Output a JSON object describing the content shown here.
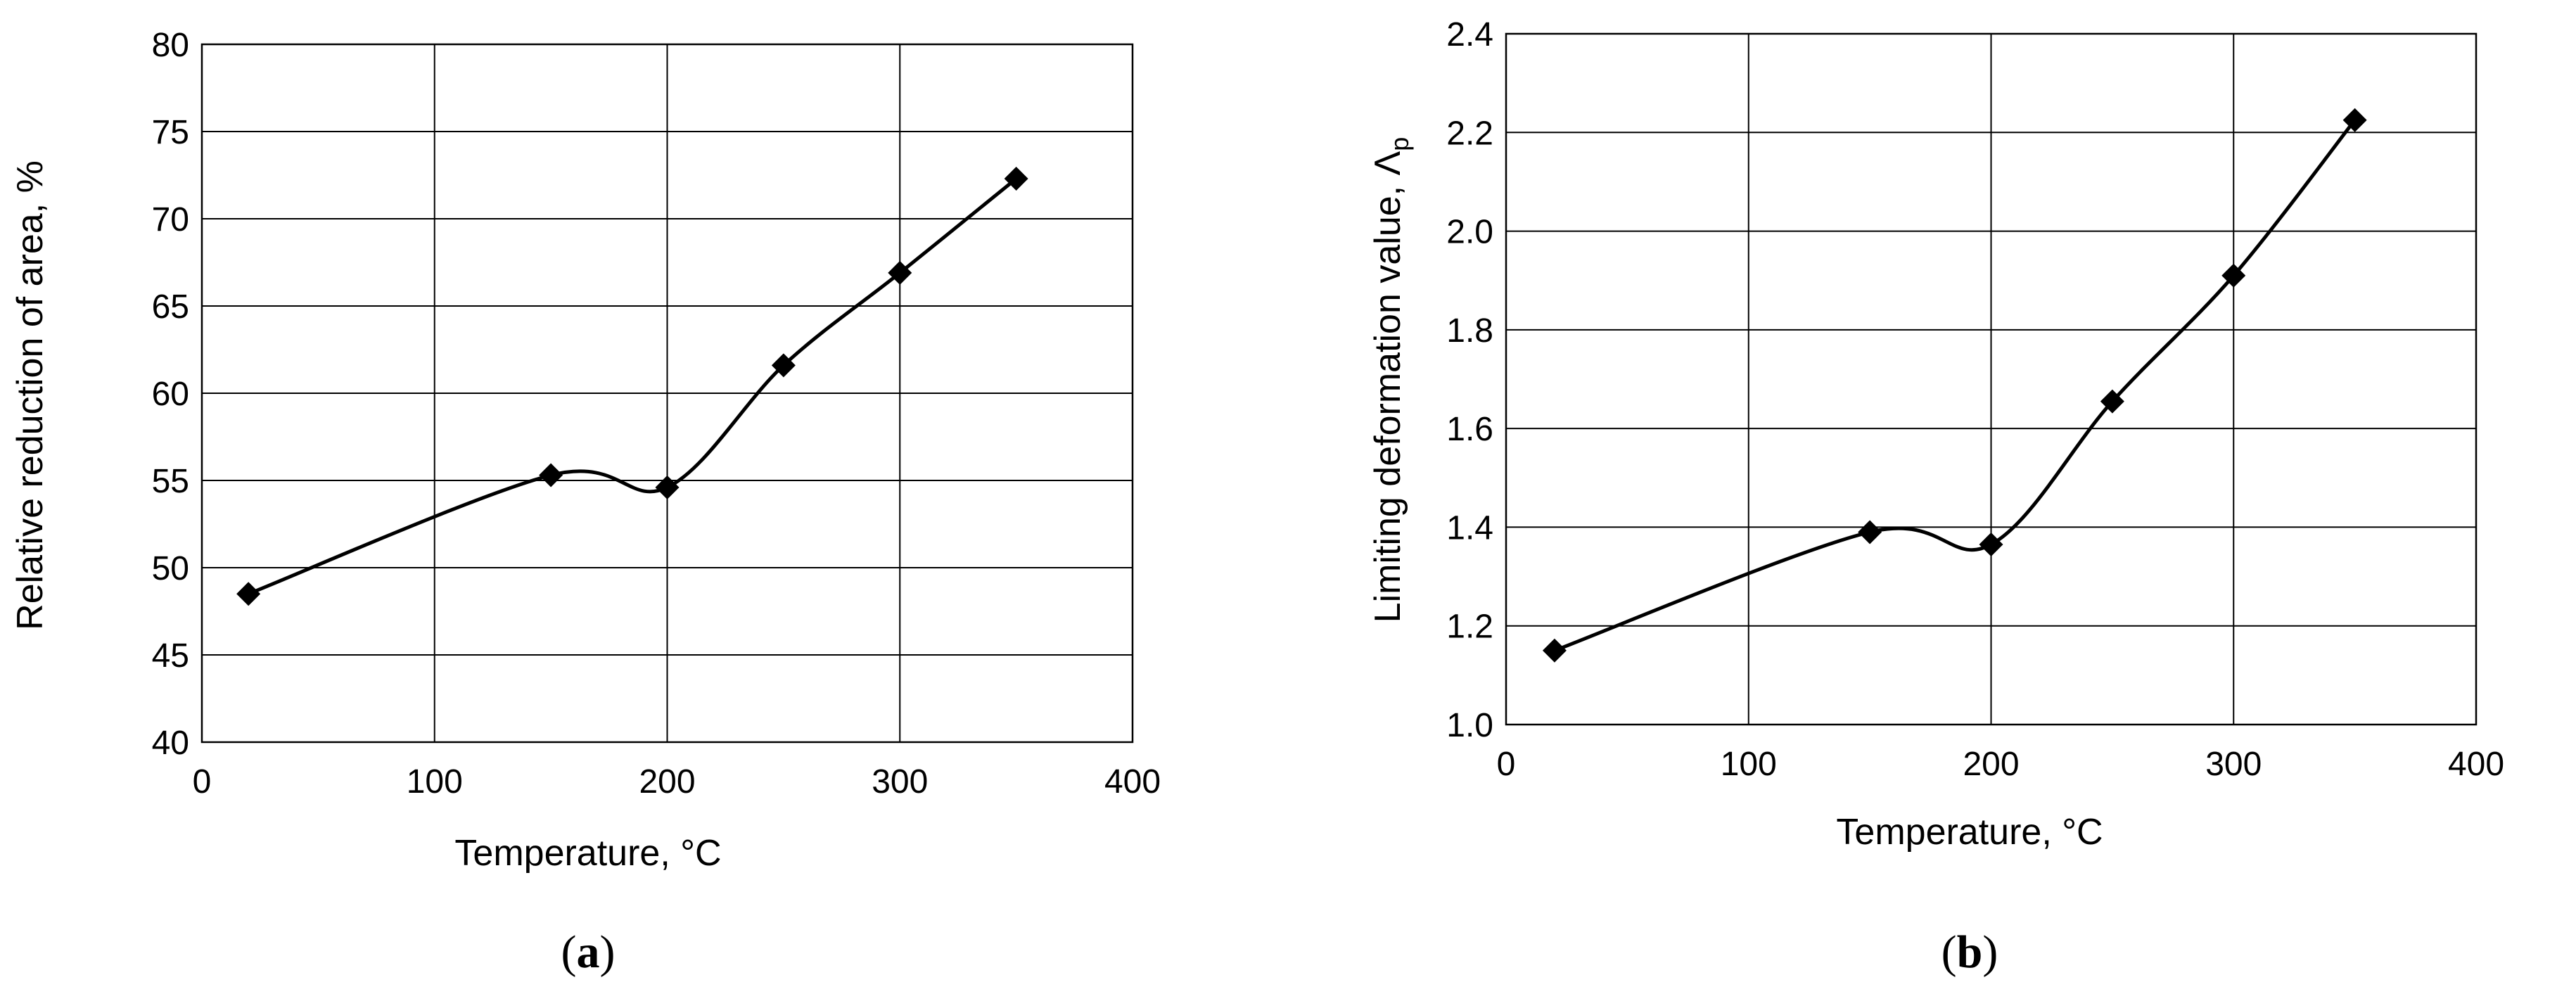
{
  "chart_data": [
    {
      "type": "line",
      "panel_label": "a",
      "title": "",
      "xlabel": "Temperature, °C",
      "ylabel": "Relative reduction of area, %",
      "xlim": [
        0,
        400
      ],
      "ylim": [
        40,
        80
      ],
      "xticks": [
        0,
        100,
        200,
        300,
        400
      ],
      "yticks": [
        40,
        45,
        50,
        55,
        60,
        65,
        70,
        75,
        80
      ],
      "grid": true,
      "legend": "none",
      "marker": "diamond",
      "smooth": true,
      "line_color": "#000000",
      "series": [
        {
          "x": [
            20,
            150,
            200,
            250,
            300,
            350
          ],
          "y": [
            48.5,
            55.3,
            54.6,
            61.6,
            66.9,
            72.3
          ]
        }
      ]
    },
    {
      "type": "line",
      "panel_label": "b",
      "title": "",
      "xlabel": "Temperature, °C",
      "ylabel": "Limiting deformation value, Λ",
      "ylabel_subscript": "p",
      "xlim": [
        0,
        400
      ],
      "ylim": [
        1.0,
        2.4
      ],
      "xticks": [
        0,
        100,
        200,
        300,
        400
      ],
      "yticks": [
        1.0,
        1.2,
        1.4,
        1.6,
        1.8,
        2.0,
        2.2,
        2.4
      ],
      "ytick_decimals": 1,
      "grid": true,
      "legend": "none",
      "marker": "diamond",
      "smooth": true,
      "line_color": "#000000",
      "series": [
        {
          "x": [
            20,
            150,
            200,
            250,
            300,
            350
          ],
          "y": [
            1.15,
            1.39,
            1.365,
            1.655,
            1.91,
            2.225
          ]
        }
      ]
    }
  ]
}
